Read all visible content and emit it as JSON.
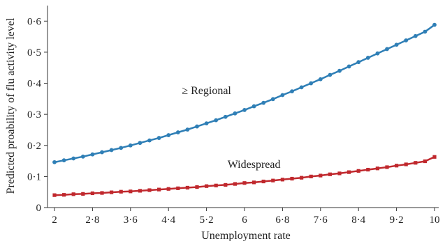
{
  "chart_data": {
    "type": "line",
    "xlabel": "Unemployment rate",
    "ylabel": "Predicted proability of flu activity level",
    "xlim": [
      2,
      10
    ],
    "ylim": [
      0,
      0.65
    ],
    "x_ticks": [
      2,
      2.8,
      3.6,
      4.4,
      5.2,
      6,
      6.8,
      7.6,
      8.4,
      9.2,
      10
    ],
    "x_tick_labels": [
      "2",
      "2·8",
      "3·6",
      "4·4",
      "5·2",
      "6",
      "6·8",
      "7·6",
      "8·4",
      "9·2",
      "10"
    ],
    "y_ticks": [
      0,
      0.1,
      0.2,
      0.3,
      0.4,
      0.5,
      0.6
    ],
    "y_tick_labels": [
      "0",
      "0·1",
      "0·2",
      "0·3",
      "0·4",
      "0·5",
      "0·6"
    ],
    "grid": false,
    "series": [
      {
        "name": "≥ Regional",
        "color": "#2f7fb6",
        "marker": "circle",
        "x": [
          2.0,
          2.2,
          2.4,
          2.6,
          2.8,
          3.0,
          3.2,
          3.4,
          3.6,
          3.8,
          4.0,
          4.2,
          4.4,
          4.6,
          4.8,
          5.0,
          5.2,
          5.4,
          5.6,
          5.8,
          6.0,
          6.2,
          6.4,
          6.6,
          6.8,
          7.0,
          7.2,
          7.4,
          7.6,
          7.8,
          8.0,
          8.2,
          8.4,
          8.6,
          8.8,
          9.0,
          9.2,
          9.4,
          9.6,
          9.8,
          10.0
        ],
        "values": [
          0.146,
          0.152,
          0.158,
          0.164,
          0.171,
          0.178,
          0.185,
          0.192,
          0.2,
          0.208,
          0.216,
          0.224,
          0.233,
          0.242,
          0.251,
          0.261,
          0.271,
          0.281,
          0.292,
          0.303,
          0.314,
          0.326,
          0.337,
          0.349,
          0.362,
          0.374,
          0.387,
          0.4,
          0.413,
          0.427,
          0.44,
          0.454,
          0.468,
          0.482,
          0.496,
          0.51,
          0.524,
          0.538,
          0.552,
          0.566,
          0.588
        ]
      },
      {
        "name": "Widespread",
        "color": "#c0282d",
        "marker": "square",
        "x": [
          2.0,
          2.2,
          2.4,
          2.6,
          2.8,
          3.0,
          3.2,
          3.4,
          3.6,
          3.8,
          4.0,
          4.2,
          4.4,
          4.6,
          4.8,
          5.0,
          5.2,
          5.4,
          5.6,
          5.8,
          6.0,
          6.2,
          6.4,
          6.6,
          6.8,
          7.0,
          7.2,
          7.4,
          7.6,
          7.8,
          8.0,
          8.2,
          8.4,
          8.6,
          8.8,
          9.0,
          9.2,
          9.4,
          9.6,
          9.8,
          10.0
        ],
        "values": [
          0.04,
          0.041,
          0.043,
          0.044,
          0.046,
          0.047,
          0.049,
          0.051,
          0.052,
          0.054,
          0.056,
          0.058,
          0.06,
          0.062,
          0.064,
          0.066,
          0.069,
          0.071,
          0.073,
          0.076,
          0.079,
          0.081,
          0.084,
          0.087,
          0.09,
          0.093,
          0.096,
          0.1,
          0.103,
          0.107,
          0.11,
          0.114,
          0.118,
          0.122,
          0.126,
          0.13,
          0.135,
          0.139,
          0.144,
          0.149,
          0.163
        ]
      }
    ],
    "annotations": [
      {
        "text": "≥ Regional",
        "x": 5.2,
        "y": 0.365
      },
      {
        "text": "Widespread",
        "x": 6.2,
        "y": 0.128
      }
    ]
  }
}
